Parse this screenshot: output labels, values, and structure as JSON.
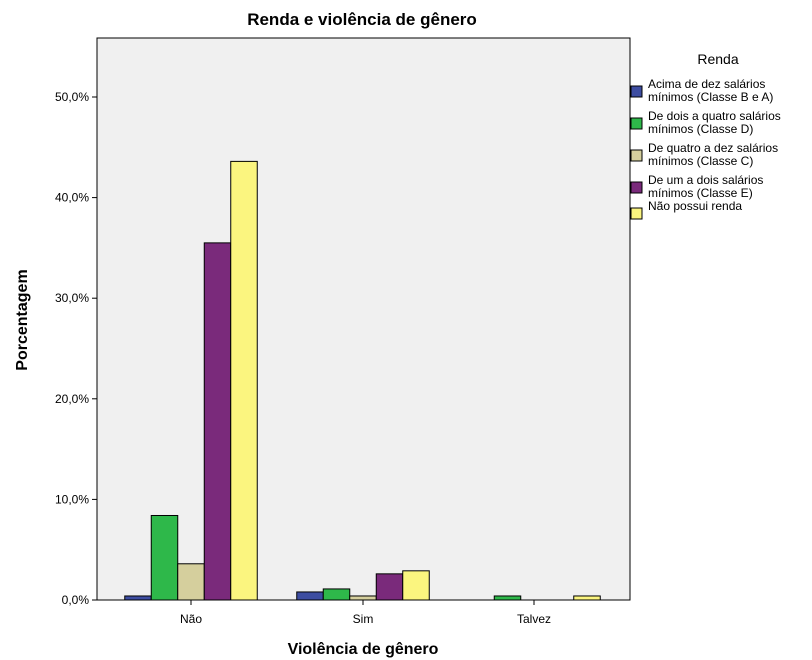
{
  "chart_data": {
    "type": "bar",
    "title": "Renda e violência de gênero",
    "xlabel": "Violência de gênero",
    "ylabel": "Porcentagem",
    "categories": [
      "Não",
      "Sim",
      "Talvez"
    ],
    "yticks": [
      "0,0%",
      "10,0%",
      "20,0%",
      "30,0%",
      "40,0%",
      "50,0%"
    ],
    "ylim": [
      0,
      55
    ],
    "grid": false,
    "legend_title": "Renda",
    "legend_position": "right",
    "series": [
      {
        "name": "Acima de dez salários mínimos (Classe B e A)",
        "legend_lines": [
          "Acima de dez salários",
          "mínimos (Classe B e A)"
        ],
        "color": "#3d4da1",
        "values": [
          0.4,
          0.8,
          0
        ]
      },
      {
        "name": "De dois a quatro salários mínimos (Classe D)",
        "legend_lines": [
          "De dois a quatro salários",
          "mínimos (Classe D)"
        ],
        "color": "#2eb84a",
        "values": [
          8.4,
          1.1,
          0.4
        ]
      },
      {
        "name": "De quatro a dez salários mínimos (Classe C)",
        "legend_lines": [
          "De quatro a dez salários",
          "mínimos (Classe C)"
        ],
        "color": "#d5cf9d",
        "values": [
          3.6,
          0.4,
          0
        ]
      },
      {
        "name": "De um a dois salários mínimos (Classe E)",
        "legend_lines": [
          "De um a dois salários",
          "mínimos (Classe E)"
        ],
        "color": "#7a2a7b",
        "values": [
          35.5,
          2.6,
          0
        ]
      },
      {
        "name": "Não possui renda",
        "legend_lines": [
          "Não possui renda"
        ],
        "color": "#fbf57f",
        "values": [
          43.6,
          2.9,
          0.4
        ]
      }
    ]
  }
}
